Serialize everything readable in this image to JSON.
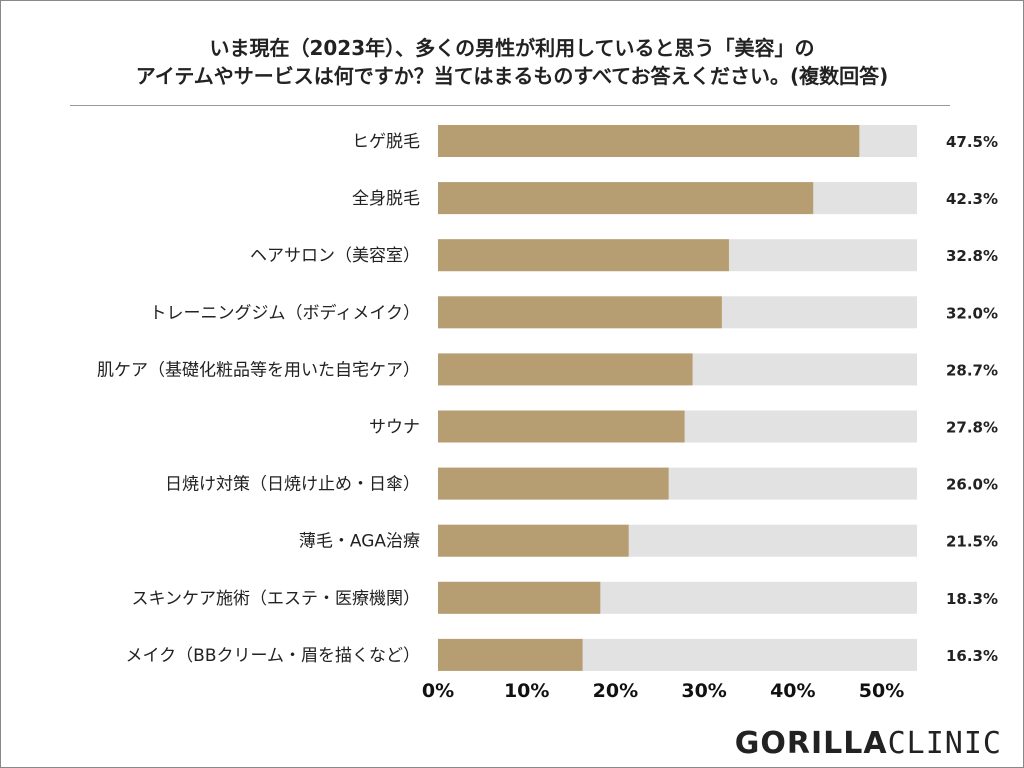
{
  "title_line1": "いま現在（2023年）、多くの男性が利用していると思う「美容」の",
  "title_line2": "アイテムやサービスは何ですか？当てはまるものすべてお答えください。(複数回答)",
  "brand": {
    "part1": "GORILLA",
    "part2": "CLINIC"
  },
  "colors": {
    "bar": "#b79e72",
    "track": "#e2e2e2"
  },
  "chart_data": {
    "type": "bar",
    "orientation": "horizontal",
    "title": "いま現在（2023年）、多くの男性が利用していると思う「美容」のアイテムやサービスは何ですか？当てはまるものすべてお答えください。(複数回答)",
    "categories": [
      "ヒゲ脱毛",
      "全身脱毛",
      "ヘアサロン（美容室）",
      "トレーニングジム（ボディメイク）",
      "肌ケア（基礎化粧品等を用いた自宅ケア）",
      "サウナ",
      "日焼け対策（日焼け止め・日傘）",
      "薄毛・AGA治療",
      "スキンケア施術（エステ・医療機関）",
      "メイク（BBクリーム・眉を描くなど）"
    ],
    "values": [
      47.5,
      42.3,
      32.8,
      32.0,
      28.7,
      27.8,
      26.0,
      21.5,
      18.3,
      16.3
    ],
    "value_labels": [
      "47.5%",
      "42.3%",
      "32.8%",
      "32.0%",
      "28.7%",
      "27.8%",
      "26.0%",
      "21.5%",
      "18.3%",
      "16.3%"
    ],
    "xlim": [
      0,
      54
    ],
    "xticks": [
      0,
      10,
      20,
      30,
      40,
      50
    ],
    "xtick_labels": [
      "0%",
      "10%",
      "20%",
      "30%",
      "40%",
      "50%"
    ],
    "xlabel": "",
    "ylabel": "",
    "grid": false,
    "legend": "none"
  }
}
